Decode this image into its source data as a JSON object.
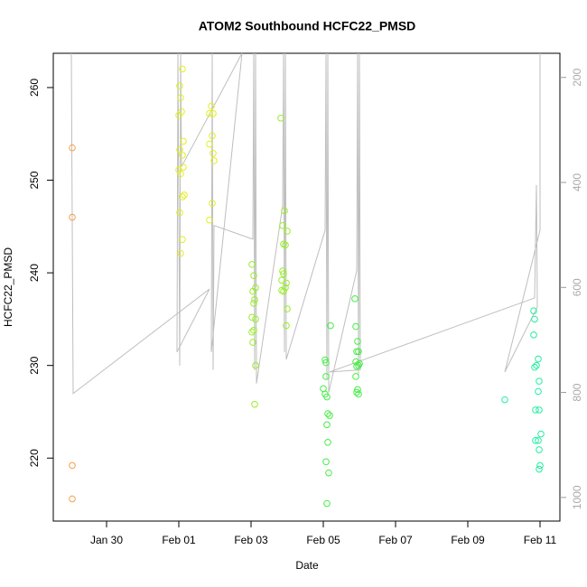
{
  "chart_data": {
    "type": "scatter",
    "title": "ATOM2 Southbound HCFC22_PMSD",
    "x_label": "Date",
    "y_label": "HCFC22_PMSD",
    "xlim": [
      28.525,
      42.55
    ],
    "xticks": [
      {
        "value": 30,
        "label": "Jan 30"
      },
      {
        "value": 32,
        "label": "Feb 01"
      },
      {
        "value": 34,
        "label": "Feb 03"
      },
      {
        "value": 36,
        "label": "Feb 05"
      },
      {
        "value": 38,
        "label": "Feb 07"
      },
      {
        "value": 40,
        "label": "Feb 09"
      },
      {
        "value": 42,
        "label": "Feb 11"
      }
    ],
    "ylim": [
      213.2,
      263.7
    ],
    "yticks": [
      220,
      230,
      240,
      250,
      260
    ],
    "y2lim": [
      1045,
      154
    ],
    "y2ticks": [
      200,
      400,
      600,
      800,
      1000
    ],
    "series": [
      {
        "type": "line",
        "axis": "y2",
        "color": "#BEBEBE",
        "x": [
          29.025,
          29.075,
          32.85,
          31.95,
          31.975,
          32.025,
          32.05,
          32.075,
          33.75,
          32.9,
          32.925,
          32.95,
          32.975,
          34.05,
          34.075,
          34.1,
          34.125,
          34.15,
          34.875,
          34.9,
          34.925,
          34.95,
          34.975,
          36.05,
          36.075,
          36.1,
          36.125,
          36.15,
          36.925,
          36.95,
          36.975,
          37.0,
          37.025,
          36.175,
          41.85,
          41.9,
          41.925,
          41.025,
          42.0,
          42.0
        ],
        "values": [
          154,
          802,
          603,
          723,
          154,
          749,
          154,
          370,
          154,
          723,
          154,
          757,
          482,
          508,
          154,
          757,
          154,
          783,
          444,
          154,
          723,
          154,
          737,
          491,
          154,
          775,
          154,
          800,
          568,
          154,
          766,
          154,
          757,
          761,
          620,
          405,
          637,
          761,
          491,
          154
        ]
      },
      {
        "type": "scatter",
        "color": "#F5A04A",
        "x": [
          29.05,
          29.05,
          29.05,
          29.05
        ],
        "values": [
          253.5,
          246.0,
          219.2,
          215.6
        ]
      },
      {
        "type": "scatter",
        "color": "#E2EE22",
        "x": [
          32.025,
          32.1,
          32.05,
          32.0,
          32.075,
          32.125,
          32.025,
          32.1,
          32.05,
          32.0,
          32.125,
          32.15,
          32.1,
          32.025,
          32.1,
          32.05,
          32.85,
          32.9,
          32.95,
          32.925,
          32.85,
          32.95,
          32.975,
          32.925,
          32.85
        ],
        "values": [
          260.2,
          262.0,
          258.9,
          257.0,
          257.4,
          254.2,
          253.3,
          252.7,
          250.7,
          251.1,
          251.4,
          248.4,
          248.2,
          246.5,
          243.6,
          242.1,
          257.2,
          258.0,
          257.2,
          254.8,
          253.9,
          252.9,
          252.1,
          247.5,
          245.7
        ]
      },
      {
        "type": "scatter",
        "color": "#99EE2A",
        "x": [
          34.025,
          34.075,
          34.125,
          34.05,
          34.1,
          34.075,
          34.025,
          34.125,
          34.075,
          34.025,
          34.05,
          34.125,
          34.1,
          34.825,
          34.925,
          34.875,
          35.0,
          34.9,
          34.95,
          34.875,
          34.9,
          34.85,
          34.975,
          34.95,
          34.9,
          34.85,
          35.0,
          34.975
        ],
        "values": [
          240.9,
          239.7,
          238.4,
          238.0,
          237.1,
          236.7,
          235.2,
          235.0,
          233.8,
          233.6,
          232.5,
          230.0,
          225.8,
          256.7,
          246.7,
          245.1,
          244.5,
          243.1,
          243.0,
          240.2,
          239.9,
          239.2,
          238.9,
          238.4,
          238.0,
          238.1,
          236.1,
          234.3
        ]
      },
      {
        "type": "scatter",
        "color": "#44EE44",
        "x": [
          36.05,
          36.075,
          36.0,
          36.05,
          36.1,
          36.075,
          36.125,
          36.175,
          36.1,
          36.125,
          36.075,
          36.15,
          36.1,
          36.2,
          36.875,
          36.9,
          36.95,
          36.975,
          36.925,
          36.9,
          37.0,
          36.925,
          36.975,
          36.9,
          36.95,
          36.925,
          36.975
        ],
        "values": [
          230.6,
          230.3,
          227.5,
          226.9,
          226.6,
          228.8,
          224.8,
          224.6,
          223.6,
          221.7,
          219.6,
          218.4,
          215.1,
          234.3,
          237.2,
          234.2,
          232.6,
          231.5,
          231.5,
          230.4,
          230.2,
          229.9,
          230.0,
          228.8,
          227.4,
          227.1,
          226.9
        ]
      },
      {
        "type": "scatter",
        "color": "#22EEA0",
        "x": [
          41.025,
          41.825,
          41.85,
          41.825,
          41.95,
          41.9,
          41.85,
          41.975,
          41.95,
          41.875,
          41.975,
          42.025,
          41.95,
          41.875,
          41.975,
          42.0,
          41.975
        ],
        "values": [
          226.3,
          235.9,
          235.0,
          233.3,
          230.7,
          230.0,
          229.8,
          228.3,
          227.2,
          225.2,
          225.2,
          222.6,
          221.9,
          221.9,
          220.9,
          219.2,
          218.8
        ]
      }
    ]
  }
}
